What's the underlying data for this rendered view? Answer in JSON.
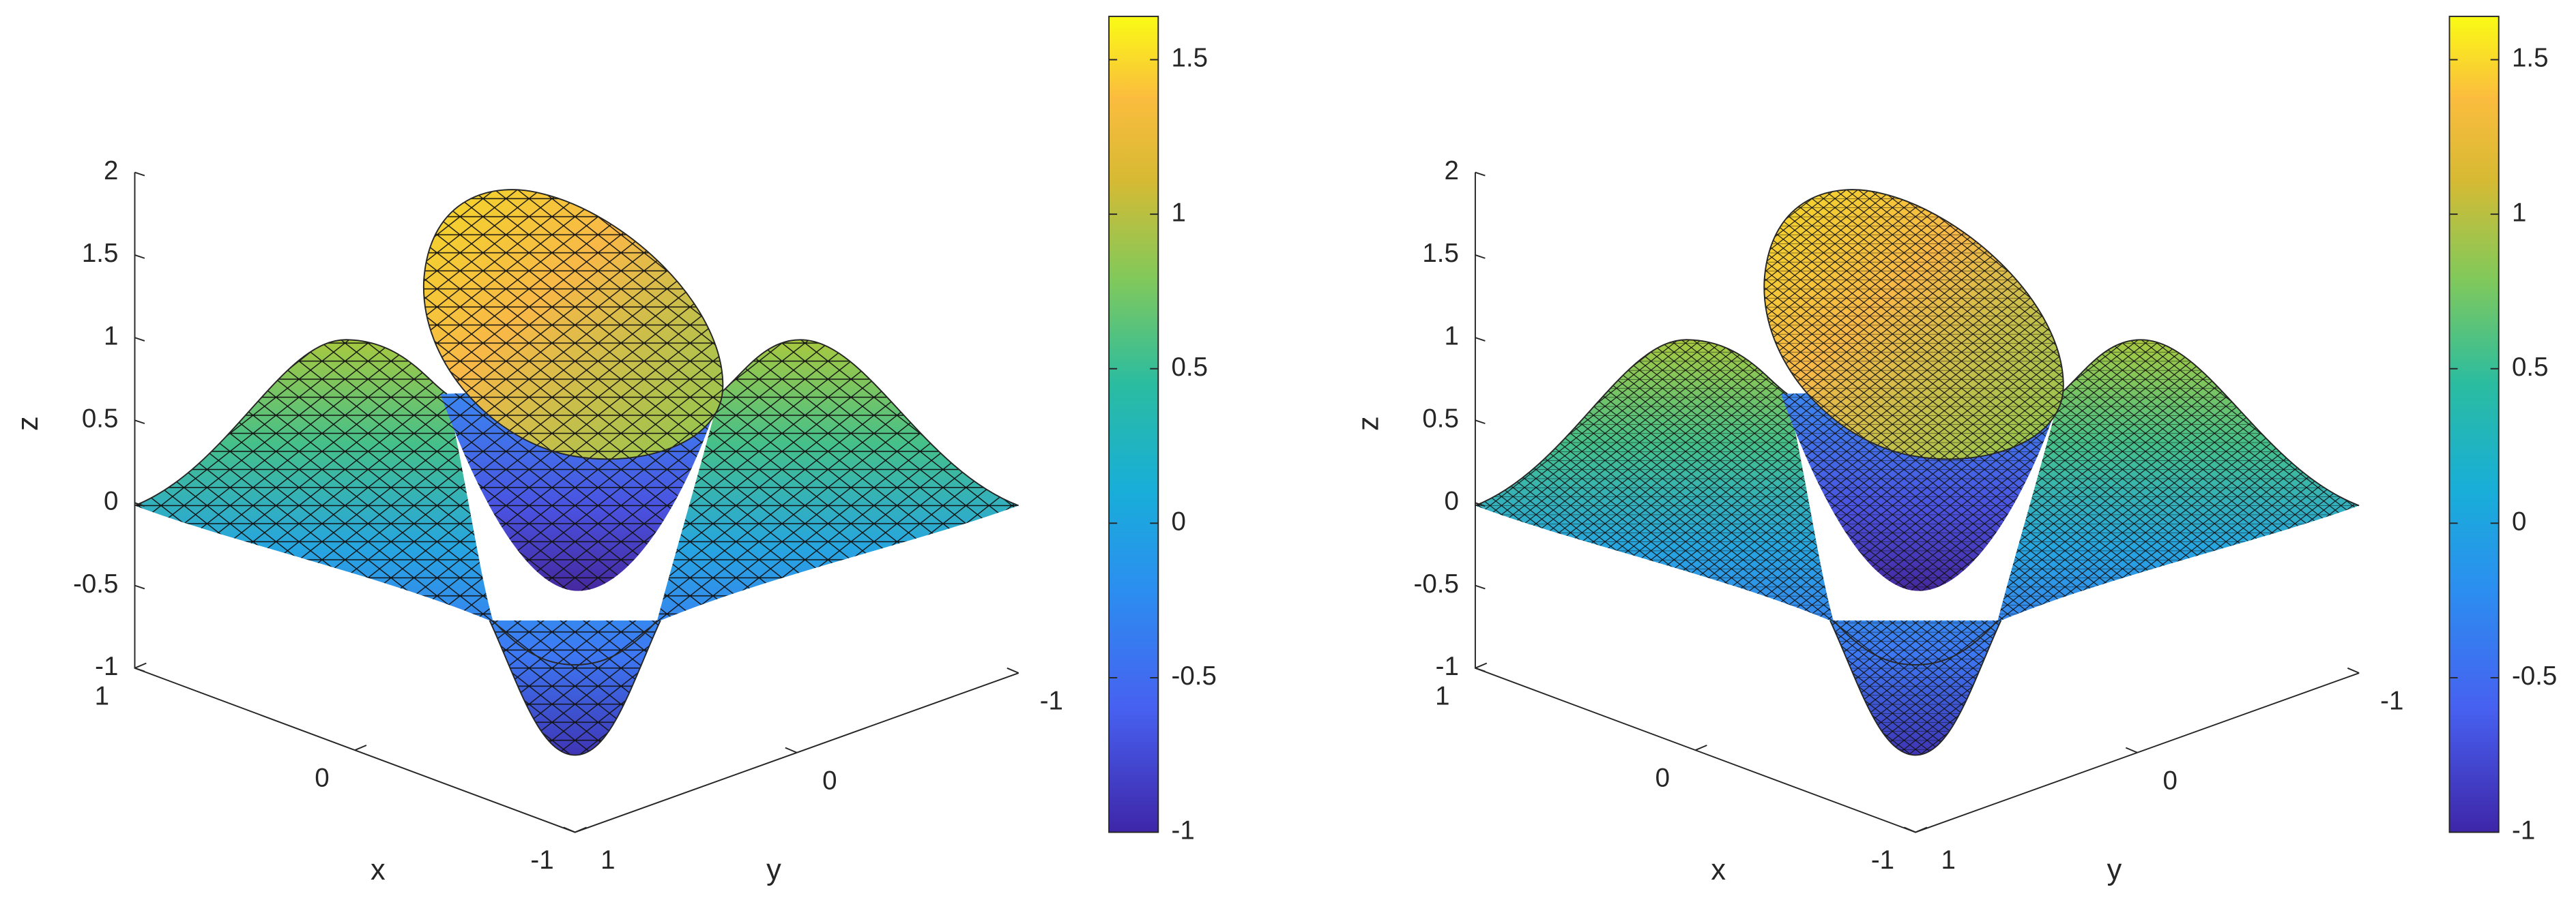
{
  "chart_data": [
    {
      "type": "surface3d",
      "xlabel": "x",
      "ylabel": "y",
      "zlabel": "z",
      "xlim": [
        -1,
        1
      ],
      "ylim": [
        -1,
        1
      ],
      "zlim": [
        -1,
        2
      ],
      "xticks": [
        -1,
        0,
        1
      ],
      "yticks": [
        -1,
        0,
        1
      ],
      "zticks": [
        -1,
        -0.5,
        0,
        0.5,
        1,
        1.5,
        2
      ],
      "colorbar": {
        "clim": [
          -1,
          1.64
        ],
        "ticks": [
          -1,
          -0.5,
          0,
          0.5,
          1,
          1.5
        ]
      }
    },
    {
      "type": "surface3d",
      "xlabel": "x",
      "ylabel": "y",
      "zlabel": "z",
      "xlim": [
        -1,
        1
      ],
      "ylim": [
        -1,
        1
      ],
      "zlim": [
        -1,
        2
      ],
      "xticks": [
        -1,
        0,
        1
      ],
      "yticks": [
        -1,
        0,
        1
      ],
      "zticks": [
        -1,
        -0.5,
        0,
        0.5,
        1,
        1.5,
        2
      ],
      "colorbar": {
        "clim": [
          -1,
          1.64
        ],
        "ticks": [
          -1,
          -0.5,
          0,
          0.5,
          1,
          1.5
        ]
      }
    }
  ]
}
